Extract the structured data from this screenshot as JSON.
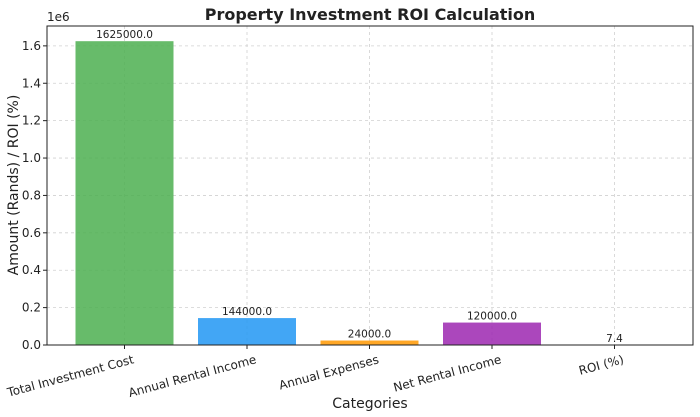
{
  "chart_data": {
    "type": "bar",
    "title": "Property Investment ROI Calculation",
    "xlabel": "Categories",
    "ylabel": "Amount (Rands) / ROI (%)",
    "axis_offset_label": "1e6",
    "categories": [
      "Total Investment Cost",
      "Annual Rental Income",
      "Annual Expenses",
      "Net Rental Income",
      "ROI (%)"
    ],
    "values": [
      1625000.0,
      144000.0,
      24000.0,
      120000.0,
      7.4
    ],
    "data_labels": [
      "1625000.0",
      "144000.0",
      "24000.0",
      "120000.0",
      "7.4"
    ],
    "colors": [
      "#4caf50",
      "#2196f3",
      "#ff9800",
      "#9c27b0",
      "#f44336"
    ],
    "ylim": [
      0,
      1706250
    ],
    "yticks": [
      0,
      200000,
      400000,
      600000,
      800000,
      1000000,
      1200000,
      1400000,
      1600000
    ],
    "ytick_labels": [
      "0.0",
      "0.2",
      "0.4",
      "0.6",
      "0.8",
      "1.0",
      "1.2",
      "1.4",
      "1.6"
    ],
    "grid": true,
    "legend": "none"
  }
}
